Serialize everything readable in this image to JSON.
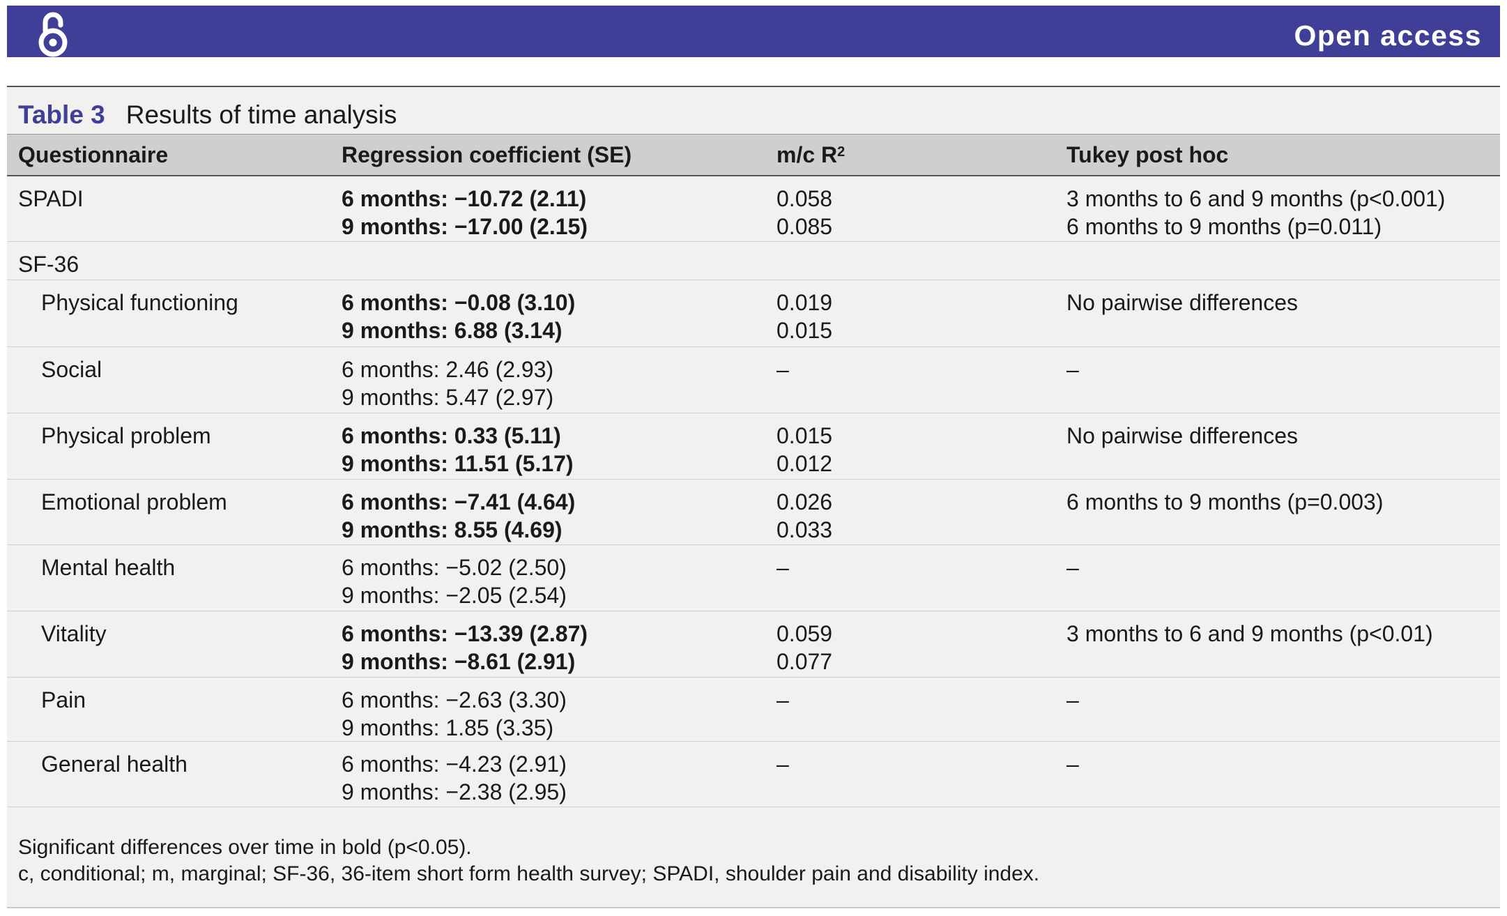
{
  "banner": {
    "icon": "open-access-lock-icon",
    "text": "Open access",
    "color": "#3f3f97"
  },
  "table": {
    "label": "Table 3",
    "title": "Results of time analysis",
    "headers": {
      "questionnaire": "Questionnaire",
      "coef": "Regression coefficient (SE)",
      "r2_prefix": "m/c R",
      "r2_sup": "2",
      "tukey": "Tukey post hoc"
    },
    "rows": [
      {
        "name": "SPADI",
        "coef": [
          "6 months: −10.72 (2.11)",
          "9 months: −17.00 (2.15)"
        ],
        "r2": [
          "0.058",
          "0.085"
        ],
        "tukey": [
          "3 months to 6 and 9 months (p<0.001)",
          "6 months to 9 months (p=0.011)"
        ],
        "bold": true
      },
      {
        "name": "SF-36",
        "coef": [],
        "r2": [],
        "tukey": [],
        "bold": false
      },
      {
        "name": "Physical functioning",
        "coef": [
          "6 months: −0.08 (3.10)",
          "9 months: 6.88 (3.14)"
        ],
        "r2": [
          "0.019",
          "0.015"
        ],
        "tukey": [
          "No pairwise differences"
        ],
        "bold": true
      },
      {
        "name": "Social",
        "coef": [
          "6 months: 2.46 (2.93)",
          "9 months: 5.47 (2.97)"
        ],
        "r2": [
          "–"
        ],
        "tukey": [
          "–"
        ],
        "bold": false
      },
      {
        "name": "Physical problem",
        "coef": [
          "6 months: 0.33 (5.11)",
          "9 months: 11.51 (5.17)"
        ],
        "r2": [
          "0.015",
          "0.012"
        ],
        "tukey": [
          "No pairwise differences"
        ],
        "bold": true
      },
      {
        "name": "Emotional problem",
        "coef": [
          "6 months: −7.41 (4.64)",
          "9 months: 8.55 (4.69)"
        ],
        "r2": [
          "0.026",
          "0.033"
        ],
        "tukey": [
          "6 months to 9 months (p=0.003)"
        ],
        "bold": true
      },
      {
        "name": "Mental health",
        "coef": [
          "6 months: −5.02 (2.50)",
          "9 months: −2.05 (2.54)"
        ],
        "r2": [
          "–"
        ],
        "tukey": [
          "–"
        ],
        "bold": false
      },
      {
        "name": "Vitality",
        "coef": [
          "6 months: −13.39 (2.87)",
          "9 months: −8.61 (2.91)"
        ],
        "r2": [
          "0.059",
          "0.077"
        ],
        "tukey": [
          "3 months to 6 and 9 months (p<0.01)"
        ],
        "bold": true
      },
      {
        "name": "Pain",
        "coef": [
          "6 months: −2.63 (3.30)",
          "9 months: 1.85 (3.35)"
        ],
        "r2": [
          "–"
        ],
        "tukey": [
          "–"
        ],
        "bold": false
      },
      {
        "name": "General health",
        "coef": [
          "6 months: −4.23 (2.91)",
          "9 months: −2.38 (2.95)"
        ],
        "r2": [
          "–"
        ],
        "tukey": [
          "–"
        ],
        "bold": false
      }
    ],
    "footnotes": [
      "Significant differences over time in bold (p<0.05).",
      "c, conditional; m, marginal; SF-36, 36-item short form health survey; SPADI, shoulder pain and disability index."
    ]
  }
}
